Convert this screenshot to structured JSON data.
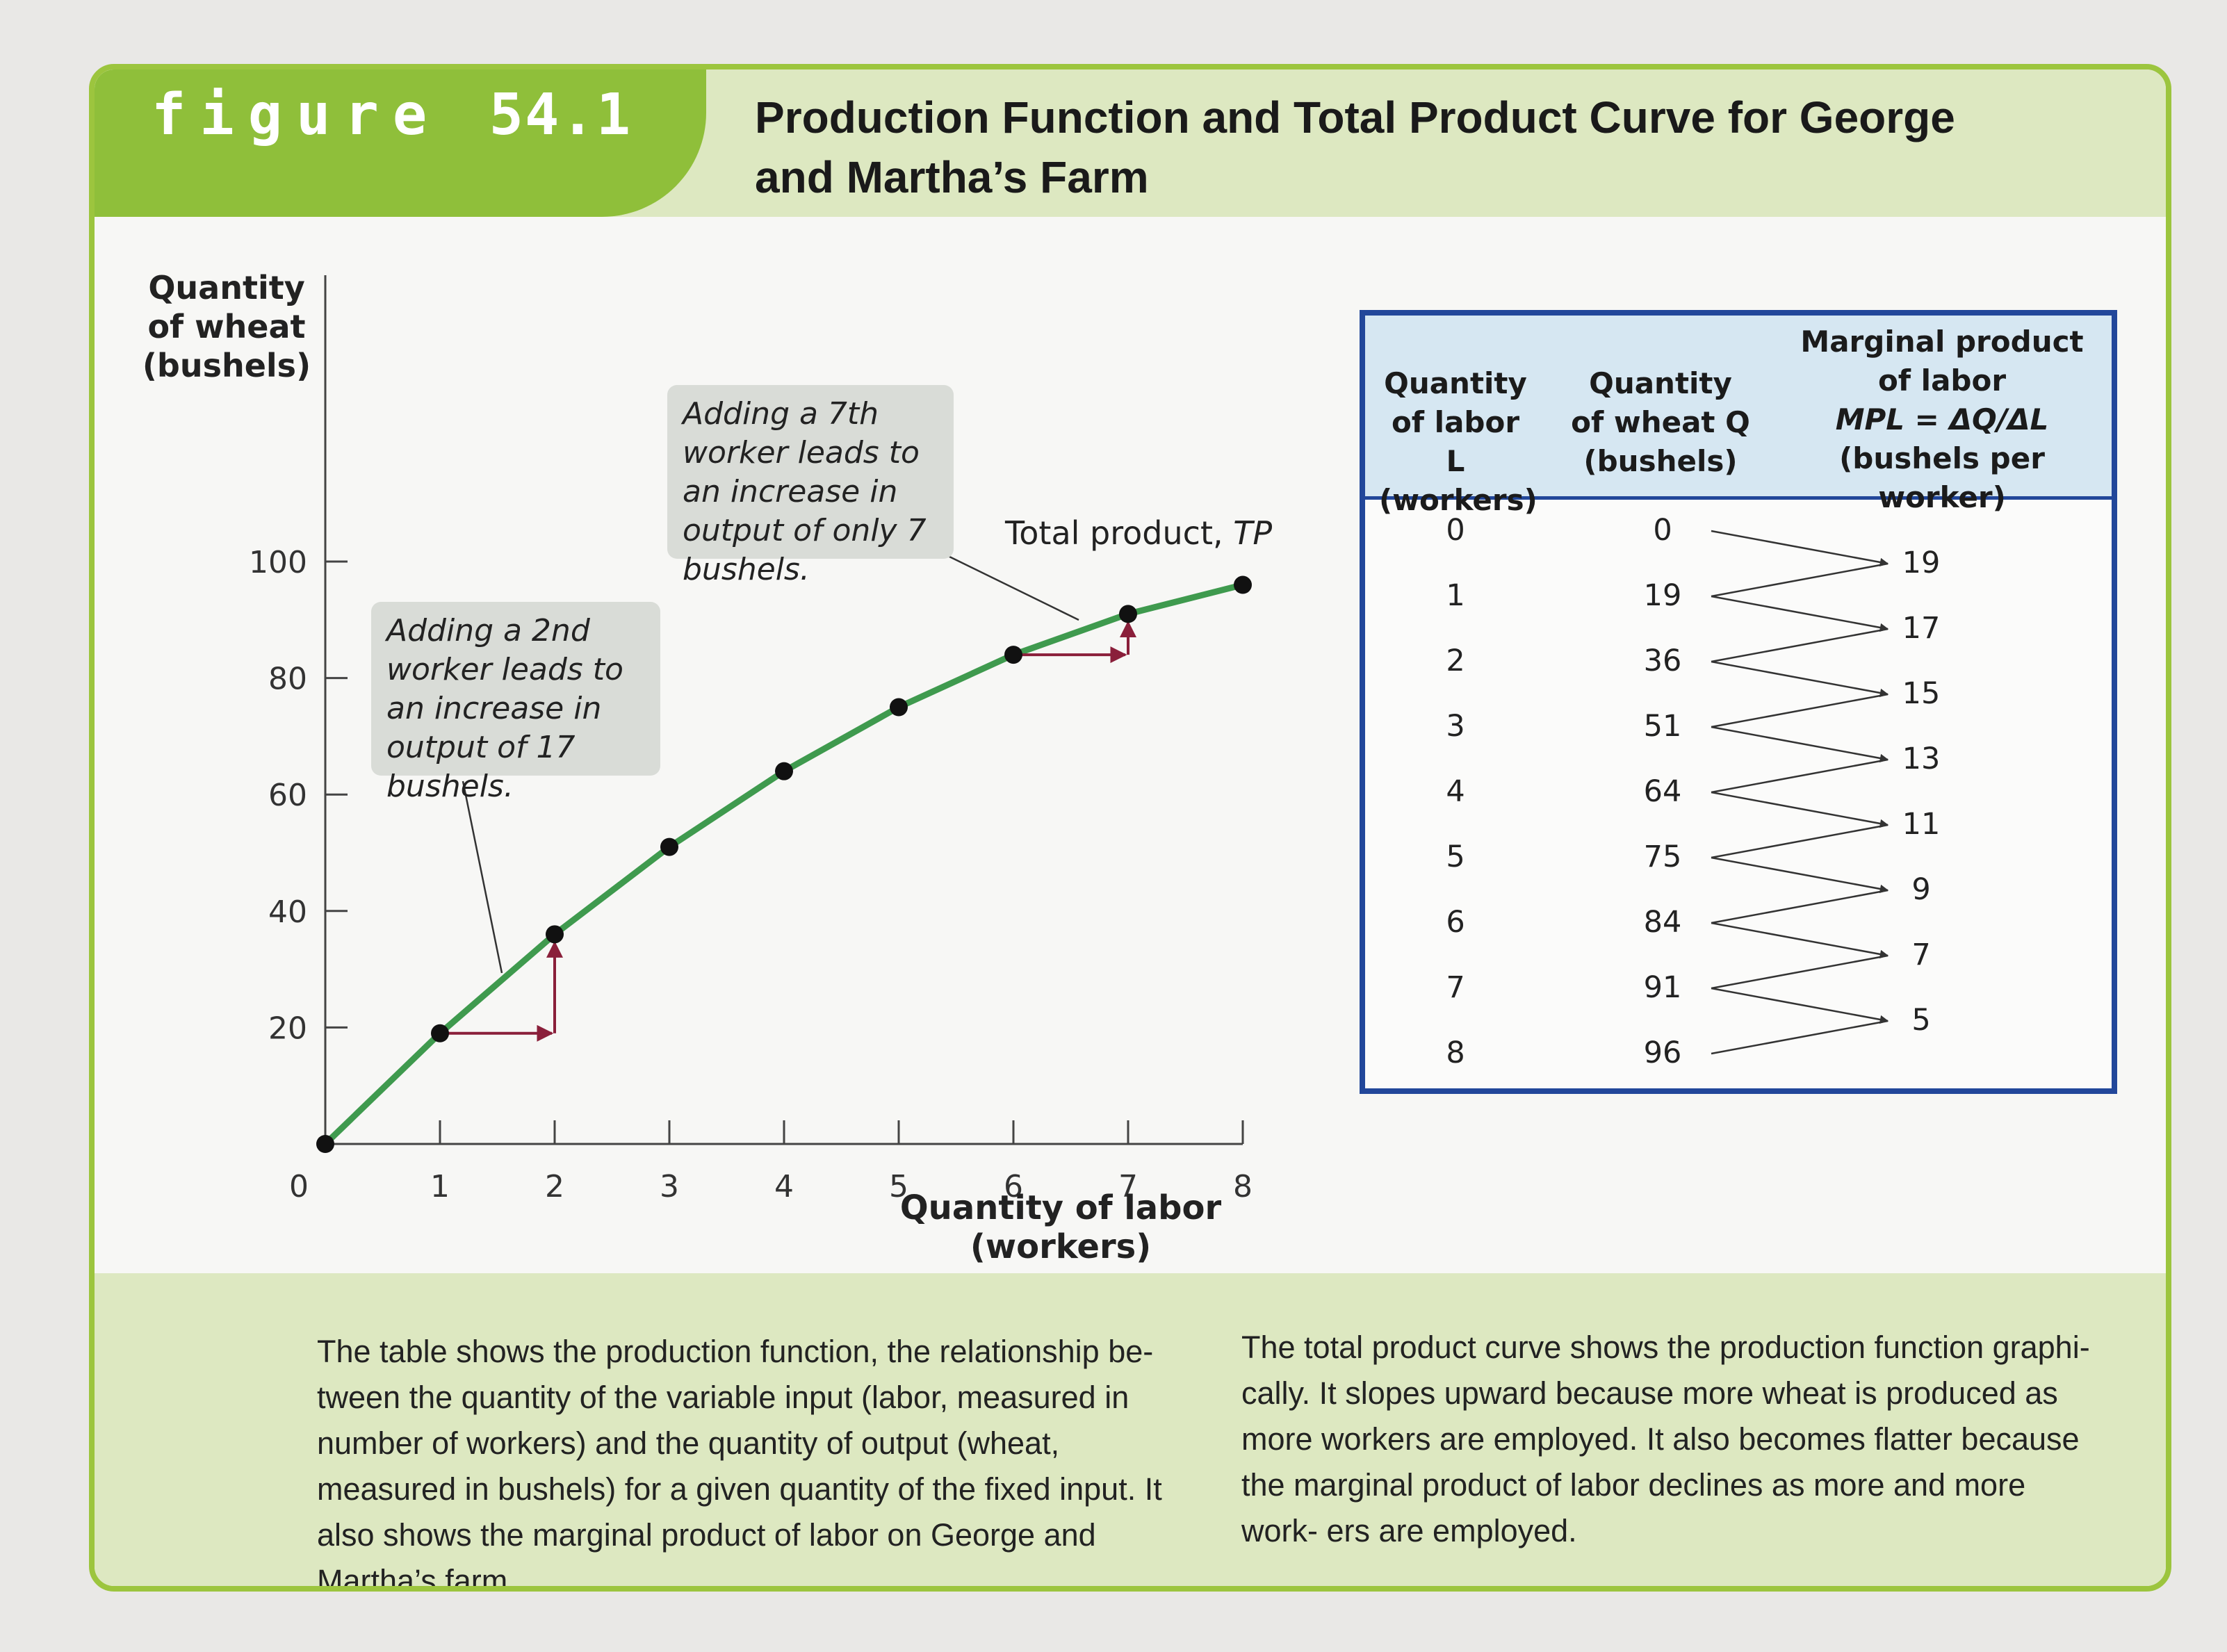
{
  "header": {
    "figure_word": "figure",
    "figure_number": "54.1",
    "title": "Production Function and Total Product Curve for George and Martha’s Farm"
  },
  "chart_data": {
    "type": "line",
    "x": [
      0,
      1,
      2,
      3,
      4,
      5,
      6,
      7,
      8
    ],
    "series": [
      {
        "name": "Total product, TP",
        "values": [
          0,
          19,
          36,
          51,
          64,
          75,
          84,
          91,
          96
        ]
      }
    ],
    "xlabel": "Quantity of labor (workers)",
    "ylabel": "Quantity of wheat (bushels)",
    "xlim": [
      0,
      8
    ],
    "ylim": [
      0,
      100
    ],
    "x_ticks": [
      "0",
      "1",
      "2",
      "3",
      "4",
      "5",
      "6",
      "7",
      "8"
    ],
    "y_ticks": [
      "20",
      "40",
      "60",
      "80",
      "100"
    ],
    "grid": false,
    "series_label_parts": {
      "text": "Total product, ",
      "italic": "TP"
    },
    "annotations": [
      {
        "text": "Adding a 2nd worker leads to an increase in output of 17 bushels.",
        "from_x": 1,
        "to_x": 2
      },
      {
        "text": "Adding a 7th worker leads to an increase in output of only 7 bushels.",
        "from_x": 6,
        "to_x": 7
      }
    ],
    "colors": {
      "curve": "#3f9a4e",
      "points": "#111111",
      "arrows": "#8a1f3a"
    }
  },
  "table": {
    "headers": {
      "labor": [
        "Quantity",
        "of labor L",
        "(workers)"
      ],
      "wheat": [
        "Quantity",
        "of wheat Q",
        "(bushels)"
      ],
      "mpl": [
        "Marginal product",
        "of labor",
        "MPL = ΔQ/ΔL",
        "(bushels per worker)"
      ]
    },
    "labor": [
      "0",
      "1",
      "2",
      "3",
      "4",
      "5",
      "6",
      "7",
      "8"
    ],
    "wheat": [
      "0",
      "19",
      "36",
      "51",
      "64",
      "75",
      "84",
      "91",
      "96"
    ],
    "mpl": [
      "19",
      "17",
      "15",
      "13",
      "11",
      "9",
      "7",
      "5"
    ]
  },
  "captions": {
    "left": "The table shows the production function, the relationship be- tween the quantity of the variable input (labor, measured in number of workers) and the quantity of output (wheat, measured in bushels) for a given quantity of the fixed input. It also shows the marginal product of labor on George and Martha’s farm.",
    "right": "The total product curve shows the production function graphi- cally. It slopes upward because more wheat is produced as more workers are employed. It also becomes flatter because the marginal product of labor declines as more and more work- ers are employed."
  },
  "colors": {
    "accent_green": "#8fbf3a",
    "band_green": "#dde8c1",
    "table_blue": "#22479a",
    "table_head": "#d6e7f2"
  }
}
